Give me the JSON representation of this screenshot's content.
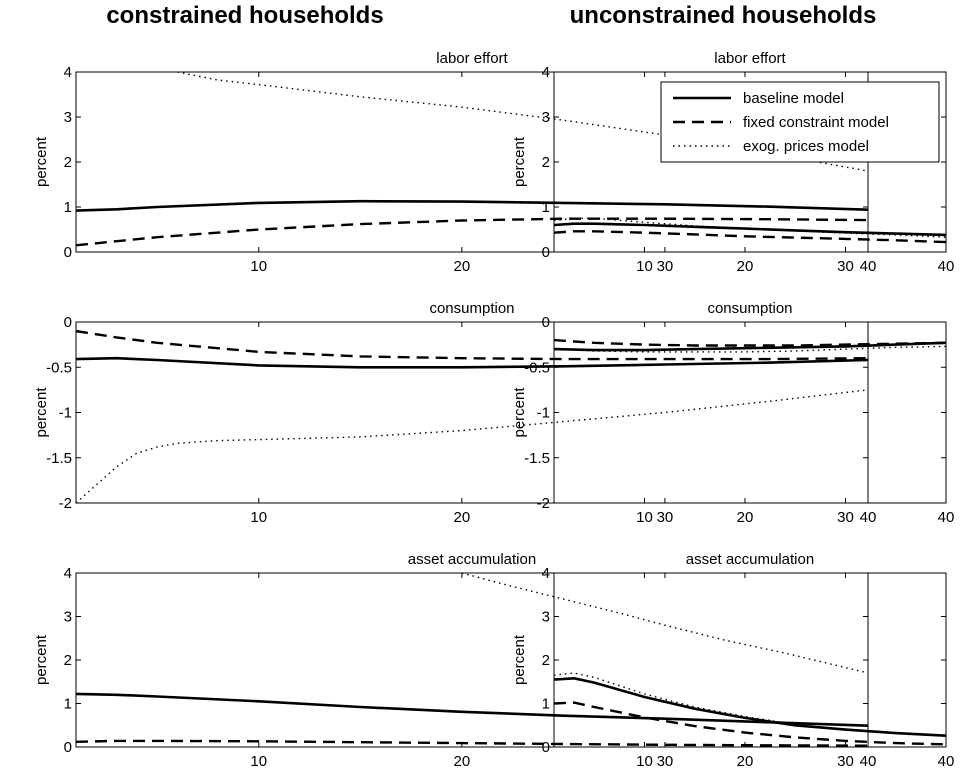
{
  "columns": {
    "left_heading": "constrained households",
    "right_heading": "unconstrained households"
  },
  "legend": {
    "entries": [
      {
        "label": "baseline model",
        "style": "solid"
      },
      {
        "label": "fixed constraint model",
        "style": "dashed"
      },
      {
        "label": "exog. prices model",
        "style": "dotted"
      }
    ]
  },
  "chart_data": [
    {
      "type": "line",
      "title": "labor effort",
      "ylabel": "percent",
      "xlim": [
        1,
        40
      ],
      "ylim": [
        0,
        4
      ],
      "xticks": [
        10,
        20,
        30,
        40
      ],
      "yticks": [
        0,
        1,
        2,
        3,
        4
      ],
      "series": [
        {
          "style": "solid",
          "x": [
            1,
            3,
            5,
            10,
            15,
            20,
            25,
            30,
            35,
            40
          ],
          "y": [
            0.92,
            0.95,
            1.0,
            1.09,
            1.13,
            1.12,
            1.09,
            1.06,
            1.01,
            0.94
          ]
        },
        {
          "style": "dashed",
          "x": [
            1,
            3,
            5,
            10,
            15,
            20,
            25,
            30,
            35,
            40
          ],
          "y": [
            0.15,
            0.24,
            0.33,
            0.5,
            0.62,
            0.7,
            0.74,
            0.74,
            0.73,
            0.71
          ]
        },
        {
          "style": "dotted",
          "x": [
            6,
            8,
            10,
            15,
            20,
            25,
            30,
            35,
            40
          ],
          "y": [
            4.0,
            3.82,
            3.72,
            3.45,
            3.22,
            2.93,
            2.6,
            2.2,
            1.8
          ]
        }
      ]
    },
    {
      "type": "line",
      "title": "consumption",
      "ylabel": "percent",
      "xlim": [
        1,
        40
      ],
      "ylim": [
        -2,
        0
      ],
      "xticks": [
        10,
        20,
        30,
        40
      ],
      "yticks": [
        -2,
        -1.5,
        -1,
        -0.5,
        0
      ],
      "series": [
        {
          "style": "solid",
          "x": [
            1,
            3,
            5,
            10,
            15,
            20,
            25,
            30,
            35,
            40
          ],
          "y": [
            -0.41,
            -0.4,
            -0.42,
            -0.48,
            -0.5,
            -0.5,
            -0.49,
            -0.47,
            -0.45,
            -0.42
          ]
        },
        {
          "style": "dashed",
          "x": [
            1,
            3,
            5,
            10,
            15,
            20,
            25,
            30,
            35,
            40
          ],
          "y": [
            -0.1,
            -0.17,
            -0.23,
            -0.33,
            -0.38,
            -0.4,
            -0.41,
            -0.41,
            -0.41,
            -0.4
          ]
        },
        {
          "style": "dotted",
          "x": [
            1,
            2,
            3,
            4,
            5,
            6,
            8,
            10,
            15,
            20,
            25,
            30,
            35,
            40
          ],
          "y": [
            -2.0,
            -1.8,
            -1.6,
            -1.45,
            -1.38,
            -1.34,
            -1.31,
            -1.3,
            -1.27,
            -1.2,
            -1.1,
            -1.0,
            -0.88,
            -0.75
          ]
        }
      ]
    },
    {
      "type": "line",
      "title": "asset accumulation",
      "ylabel": "percent",
      "xlim": [
        1,
        40
      ],
      "ylim": [
        0,
        4
      ],
      "xticks": [
        10,
        20,
        30,
        40
      ],
      "yticks": [
        0,
        1,
        2,
        3,
        4
      ],
      "series": [
        {
          "style": "solid",
          "x": [
            1,
            3,
            5,
            10,
            15,
            20,
            25,
            30,
            35,
            40
          ],
          "y": [
            1.22,
            1.2,
            1.16,
            1.05,
            0.92,
            0.81,
            0.72,
            0.65,
            0.57,
            0.49
          ]
        },
        {
          "style": "dashed",
          "x": [
            1,
            3,
            5,
            10,
            15,
            20,
            25,
            30,
            35,
            40
          ],
          "y": [
            0.12,
            0.14,
            0.14,
            0.13,
            0.11,
            0.09,
            0.07,
            0.05,
            0.04,
            0.03
          ]
        },
        {
          "style": "dotted",
          "x": [
            20,
            22,
            25,
            28,
            30,
            33,
            36,
            40
          ],
          "y": [
            4.0,
            3.75,
            3.4,
            3.05,
            2.8,
            2.45,
            2.15,
            1.7
          ]
        }
      ]
    },
    {
      "type": "line",
      "title": "labor effort",
      "ylabel": "percent",
      "xlim": [
        1,
        40
      ],
      "ylim": [
        0,
        4
      ],
      "xticks": [
        10,
        20,
        30,
        40
      ],
      "yticks": [
        0,
        1,
        2,
        3,
        4
      ],
      "series": [
        {
          "style": "solid",
          "x": [
            1,
            3,
            5,
            10,
            15,
            20,
            25,
            30,
            35,
            40
          ],
          "y": [
            0.6,
            0.63,
            0.63,
            0.6,
            0.56,
            0.52,
            0.48,
            0.44,
            0.41,
            0.38
          ]
        },
        {
          "style": "dashed",
          "x": [
            1,
            3,
            5,
            10,
            15,
            20,
            25,
            30,
            35,
            40
          ],
          "y": [
            0.43,
            0.46,
            0.46,
            0.43,
            0.39,
            0.35,
            0.32,
            0.29,
            0.26,
            0.22
          ]
        },
        {
          "style": "dotted",
          "x": [
            1,
            3,
            5,
            10,
            15,
            20,
            25,
            30,
            35,
            40
          ],
          "y": [
            0.7,
            0.75,
            0.75,
            0.66,
            0.58,
            0.52,
            0.47,
            0.42,
            0.38,
            0.33
          ]
        }
      ]
    },
    {
      "type": "line",
      "title": "consumption",
      "ylabel": "percent",
      "xlim": [
        1,
        40
      ],
      "ylim": [
        -2,
        0
      ],
      "xticks": [
        10,
        20,
        30,
        40
      ],
      "yticks": [
        -2,
        -1.5,
        -1,
        -0.5,
        0
      ],
      "series": [
        {
          "style": "solid",
          "x": [
            1,
            5,
            10,
            15,
            20,
            25,
            30,
            35,
            40
          ],
          "y": [
            -0.3,
            -0.31,
            -0.31,
            -0.3,
            -0.29,
            -0.28,
            -0.27,
            -0.25,
            -0.23
          ]
        },
        {
          "style": "dashed",
          "x": [
            1,
            5,
            10,
            15,
            20,
            25,
            30,
            35,
            40
          ],
          "y": [
            -0.2,
            -0.23,
            -0.25,
            -0.26,
            -0.26,
            -0.26,
            -0.25,
            -0.24,
            -0.23
          ]
        },
        {
          "style": "dotted",
          "x": [
            1,
            5,
            10,
            15,
            20,
            25,
            30,
            35,
            40
          ],
          "y": [
            -0.3,
            -0.32,
            -0.33,
            -0.33,
            -0.33,
            -0.32,
            -0.3,
            -0.28,
            -0.27
          ]
        }
      ]
    },
    {
      "type": "line",
      "title": "asset accumulation",
      "ylabel": "percent",
      "xlim": [
        1,
        40
      ],
      "ylim": [
        0,
        4
      ],
      "xticks": [
        10,
        20,
        30,
        40
      ],
      "yticks": [
        0,
        1,
        2,
        3,
        4
      ],
      "series": [
        {
          "style": "solid",
          "x": [
            1,
            3,
            5,
            10,
            15,
            20,
            25,
            30,
            35,
            40
          ],
          "y": [
            1.55,
            1.58,
            1.48,
            1.15,
            0.88,
            0.67,
            0.5,
            0.4,
            0.32,
            0.26
          ]
        },
        {
          "style": "dashed",
          "x": [
            1,
            3,
            5,
            10,
            15,
            20,
            25,
            30,
            35,
            40
          ],
          "y": [
            1.0,
            1.02,
            0.92,
            0.68,
            0.48,
            0.33,
            0.22,
            0.14,
            0.09,
            0.06
          ]
        },
        {
          "style": "dotted",
          "x": [
            1,
            3,
            5,
            10,
            15,
            20,
            25,
            30,
            35,
            40
          ],
          "y": [
            1.65,
            1.7,
            1.6,
            1.22,
            0.92,
            0.7,
            0.52,
            0.4,
            0.32,
            0.27
          ]
        }
      ]
    }
  ]
}
